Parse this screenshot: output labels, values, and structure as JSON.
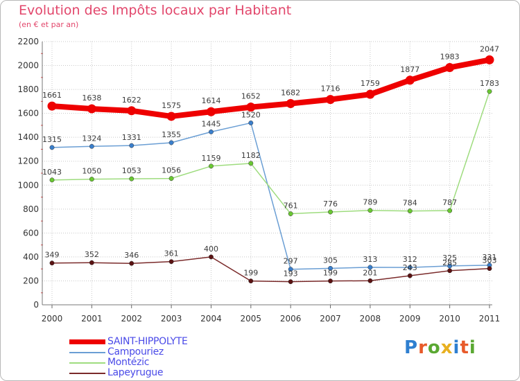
{
  "title": "Evolution des Impôts locaux par Habitant",
  "subtitle": "(en € et par an)",
  "logo": {
    "text": "Proxiti",
    "colors": [
      "#2e7fd0",
      "#e85a2a",
      "#5aa832",
      "#e8b020",
      "#2e7fd0",
      "#e85a2a",
      "#5aa832"
    ]
  },
  "chart_data": {
    "type": "line",
    "x": [
      2000,
      2001,
      2002,
      2003,
      2004,
      2005,
      2006,
      2007,
      2008,
      2009,
      2010,
      2011
    ],
    "xticks": [
      "2000",
      "2001",
      "2002",
      "2003",
      "2004",
      "2005",
      "2006",
      "2007",
      "2008",
      "2009",
      "2010",
      "2011"
    ],
    "ylim": [
      0,
      2200
    ],
    "yticks": [
      "0",
      "200",
      "400",
      "600",
      "800",
      "1000",
      "1200",
      "1400",
      "1600",
      "1800",
      "2000",
      "2200"
    ],
    "ytick_values": [
      0,
      200,
      400,
      600,
      800,
      1000,
      1200,
      1400,
      1600,
      1800,
      2000,
      2200
    ],
    "grid": true,
    "legend_position": "bottom-left",
    "series": [
      {
        "name": "SAINT-HIPPOLYTE",
        "color": "#ee0000",
        "marker_color": "#ee0000",
        "width": "thick",
        "values": [
          1661,
          1638,
          1622,
          1575,
          1614,
          1652,
          1682,
          1716,
          1759,
          1877,
          1983,
          2047
        ]
      },
      {
        "name": "Campouriez",
        "color": "#6a9ed4",
        "marker_color": "#3a7fcc",
        "width": "thin",
        "values": [
          1315,
          1324,
          1331,
          1355,
          1445,
          1520,
          297,
          305,
          313,
          312,
          325,
          331
        ]
      },
      {
        "name": "Montézic",
        "color": "#9edc7e",
        "marker_color": "#6ac832",
        "width": "thin",
        "values": [
          1043,
          1050,
          1053,
          1056,
          1159,
          1182,
          761,
          776,
          789,
          784,
          787,
          1783
        ]
      },
      {
        "name": "Lapeyrugue",
        "color": "#7a2a2a",
        "marker_color": "#5a1212",
        "width": "thin",
        "values": [
          349,
          352,
          346,
          361,
          400,
          199,
          193,
          199,
          201,
          243,
          285,
          303
        ]
      }
    ]
  }
}
